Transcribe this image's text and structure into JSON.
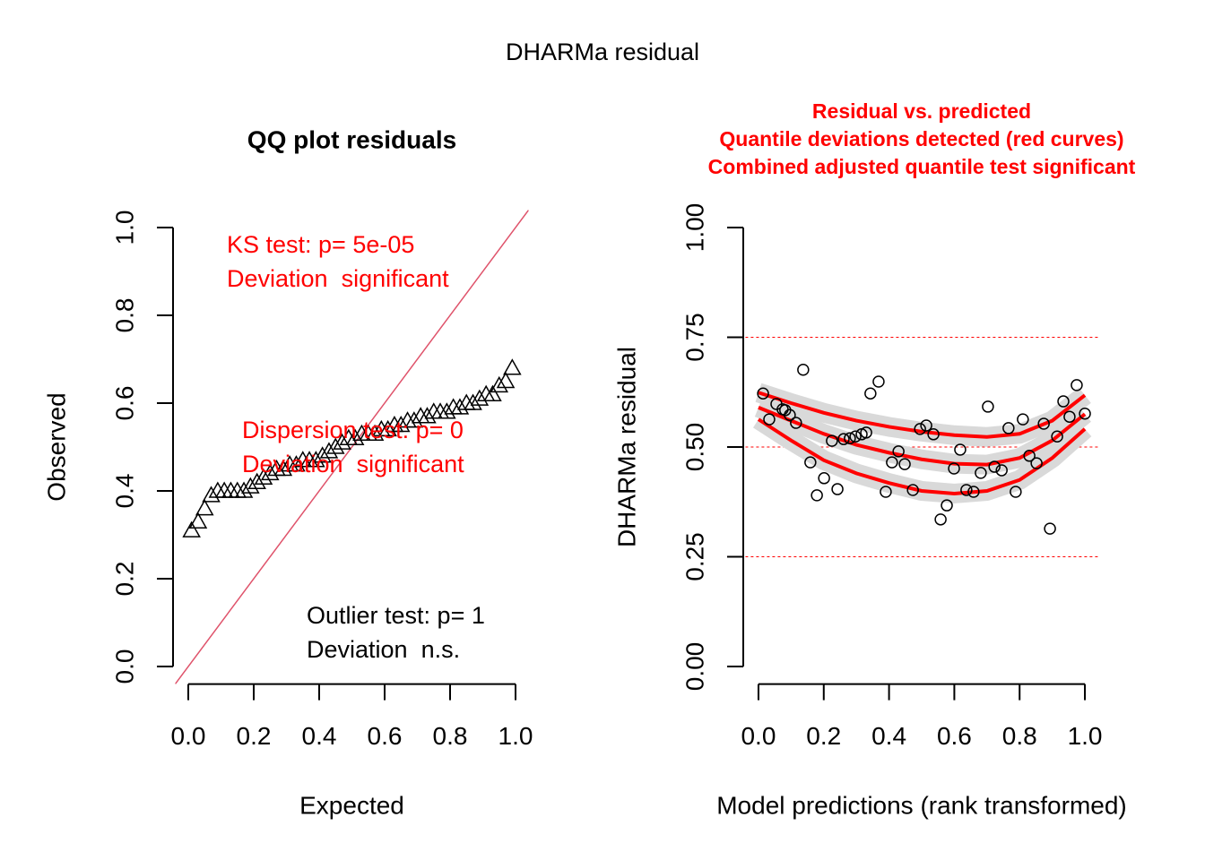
{
  "title": "DHARMa residual",
  "chart_data": [
    {
      "type": "scatter",
      "title": "QQ plot residuals",
      "xlabel": "Expected",
      "ylabel": "Observed",
      "marker": "triangle",
      "color": "#000000",
      "x": [
        0.01,
        0.03,
        0.05,
        0.07,
        0.09,
        0.11,
        0.13,
        0.15,
        0.17,
        0.19,
        0.21,
        0.23,
        0.25,
        0.27,
        0.29,
        0.31,
        0.33,
        0.35,
        0.37,
        0.39,
        0.41,
        0.43,
        0.45,
        0.47,
        0.49,
        0.51,
        0.53,
        0.55,
        0.57,
        0.59,
        0.61,
        0.63,
        0.65,
        0.67,
        0.69,
        0.71,
        0.73,
        0.75,
        0.77,
        0.79,
        0.81,
        0.83,
        0.85,
        0.87,
        0.89,
        0.91,
        0.93,
        0.95,
        0.97,
        0.99
      ],
      "values": [
        0.31,
        0.33,
        0.36,
        0.39,
        0.4,
        0.4,
        0.4,
        0.4,
        0.4,
        0.41,
        0.42,
        0.43,
        0.44,
        0.45,
        0.45,
        0.46,
        0.46,
        0.47,
        0.47,
        0.47,
        0.48,
        0.49,
        0.5,
        0.51,
        0.52,
        0.52,
        0.53,
        0.53,
        0.53,
        0.54,
        0.54,
        0.55,
        0.55,
        0.56,
        0.56,
        0.57,
        0.57,
        0.58,
        0.58,
        0.58,
        0.59,
        0.59,
        0.6,
        0.6,
        0.61,
        0.62,
        0.62,
        0.64,
        0.65,
        0.68
      ],
      "reference_line": {
        "slope": 1,
        "intercept": 0,
        "color": "#DF536B"
      },
      "xlim": [
        -0.04,
        1.04
      ],
      "ylim": [
        -0.04,
        1.04
      ],
      "xticks": [
        {
          "value": 0,
          "label": "0.0"
        },
        0.2,
        0.4,
        0.6,
        0.8,
        {
          "value": 1,
          "label": "1.0"
        }
      ],
      "yticks": [
        {
          "value": 0,
          "label": "0.0"
        },
        0.2,
        0.4,
        0.6,
        0.8,
        {
          "value": 1,
          "label": "1.0"
        }
      ],
      "annotations": [
        {
          "text": "KS test: p= 5e-05",
          "color": "#ff0000"
        },
        {
          "text": "Deviation  significant",
          "color": "#ff0000"
        },
        {
          "text": "Dispersion test: p= 0",
          "color": "#ff0000"
        },
        {
          "text": "Deviation  significant",
          "color": "#ff0000"
        },
        {
          "text": "Outlier test: p= 1",
          "color": "#000000"
        },
        {
          "text": "Deviation  n.s.",
          "color": "#000000"
        }
      ]
    },
    {
      "type": "scatter",
      "title": [
        "Residual vs. predicted",
        "Quantile deviations detected (red curves)",
        "Combined adjusted quantile test significant"
      ],
      "title_color": "#ff0000",
      "xlabel": "Model predictions (rank transformed)",
      "ylabel": "DHARMa residual",
      "marker": "circle",
      "color": "#000000",
      "x": [
        0.014,
        0.033,
        0.055,
        0.074,
        0.082,
        0.096,
        0.115,
        0.137,
        0.159,
        0.179,
        0.201,
        0.225,
        0.242,
        0.261,
        0.28,
        0.297,
        0.316,
        0.33,
        0.343,
        0.368,
        0.39,
        0.409,
        0.429,
        0.448,
        0.473,
        0.495,
        0.514,
        0.536,
        0.558,
        0.577,
        0.599,
        0.618,
        0.637,
        0.659,
        0.681,
        0.703,
        0.723,
        0.745,
        0.766,
        0.788,
        0.81,
        0.83,
        0.852,
        0.874,
        0.893,
        0.915,
        0.934,
        0.953,
        0.975,
        1.0
      ],
      "values": [
        0.622,
        0.563,
        0.598,
        0.586,
        0.584,
        0.573,
        0.555,
        0.676,
        0.465,
        0.39,
        0.429,
        0.514,
        0.404,
        0.518,
        0.52,
        0.524,
        0.529,
        0.533,
        0.622,
        0.649,
        0.398,
        0.465,
        0.49,
        0.461,
        0.402,
        0.541,
        0.549,
        0.529,
        0.335,
        0.367,
        0.451,
        0.494,
        0.402,
        0.398,
        0.441,
        0.592,
        0.455,
        0.447,
        0.543,
        0.398,
        0.563,
        0.48,
        0.463,
        0.553,
        0.314,
        0.524,
        0.604,
        0.569,
        0.641,
        0.576
      ],
      "curve_x": [
        0,
        0.1,
        0.2,
        0.3,
        0.4,
        0.5,
        0.6,
        0.7,
        0.8,
        0.9,
        1.0
      ],
      "curves": [
        {
          "color": "#ff0000",
          "values": [
            0.624,
            0.6,
            0.578,
            0.56,
            0.546,
            0.535,
            0.527,
            0.523,
            0.53,
            0.56,
            0.618
          ]
        },
        {
          "color": "#ff0000",
          "values": [
            0.59,
            0.56,
            0.53,
            0.505,
            0.487,
            0.472,
            0.462,
            0.46,
            0.475,
            0.515,
            0.575
          ]
        },
        {
          "color": "#ff0000",
          "values": [
            0.563,
            0.515,
            0.47,
            0.44,
            0.418,
            0.4,
            0.394,
            0.4,
            0.425,
            0.475,
            0.541
          ]
        }
      ],
      "hlines": [
        0.25,
        0.5,
        0.75
      ],
      "hline_color": "#ff0000",
      "xlim": [
        -0.04,
        1.04
      ],
      "ylim": [
        -0.04,
        1.04
      ],
      "xticks": [
        {
          "value": 0,
          "label": "0.0"
        },
        0.2,
        0.4,
        0.6,
        0.8,
        {
          "value": 1,
          "label": "1.0"
        }
      ],
      "yticks": [
        {
          "value": 0,
          "label": "0.00"
        },
        0.25,
        {
          "value": 0.5,
          "label": "0.50"
        },
        0.75,
        {
          "value": 1,
          "label": "1.00"
        }
      ]
    }
  ]
}
